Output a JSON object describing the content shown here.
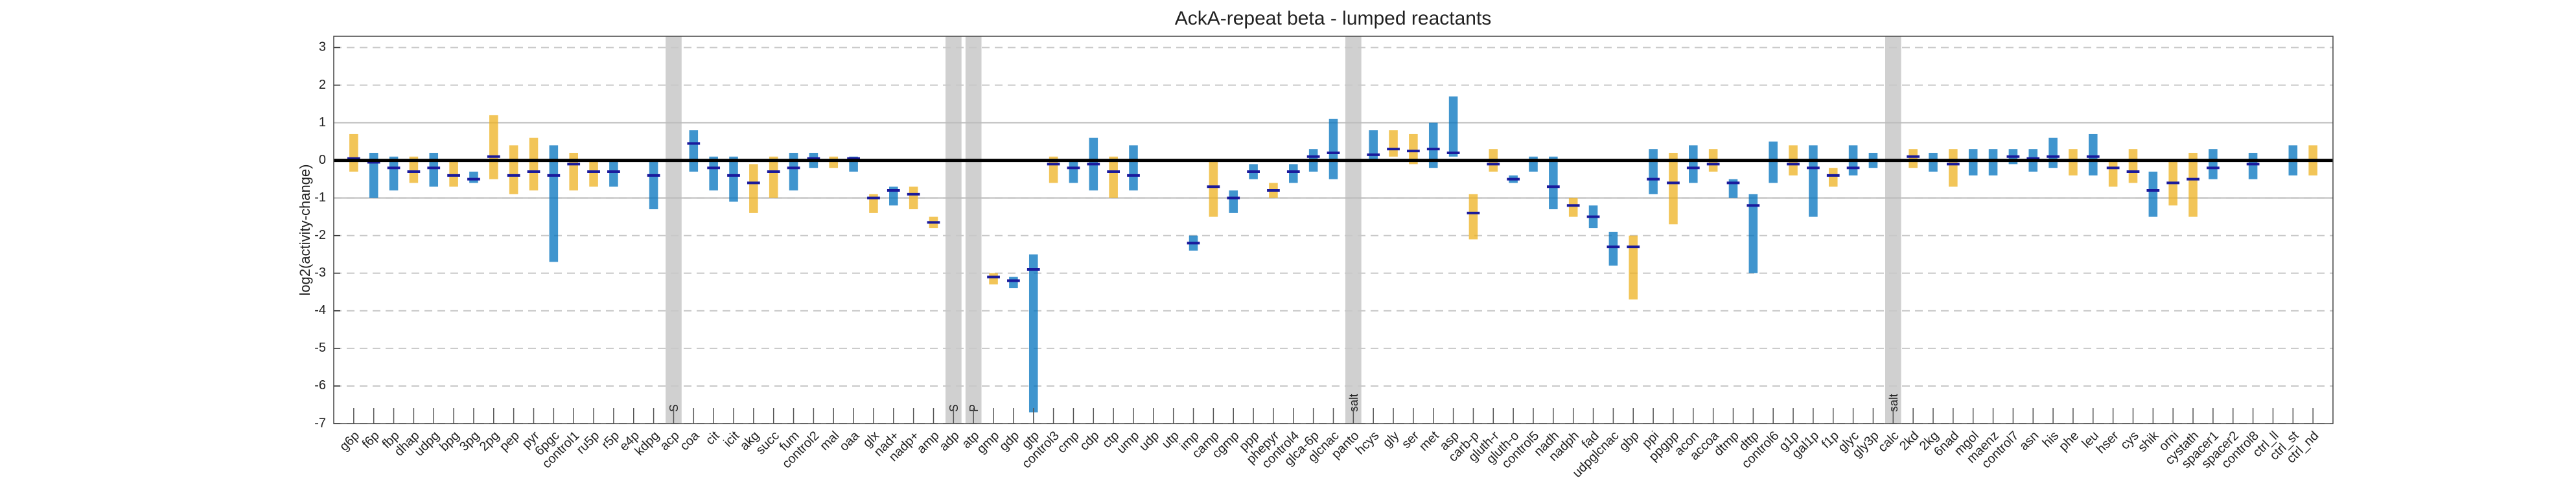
{
  "chart_data": {
    "type": "range-median",
    "title": "AckA-repeat beta - lumped reactants",
    "ylabel": "log2(activity-change)",
    "categories": [
      "g6p",
      "f6p",
      "fbp",
      "dhap",
      "udpg",
      "bpg",
      "3pg",
      "2pg",
      "pep",
      "pyr",
      "6pgc",
      "control1",
      "ru5p",
      "r5p",
      "e4p",
      "kdpg",
      "acp",
      "coa",
      "cit",
      "icit",
      "akg",
      "succ",
      "fum",
      "control2",
      "mal",
      "oaa",
      "glx",
      "nad+",
      "nadp+",
      "amp",
      "adp",
      "atp",
      "gmp",
      "gdp",
      "gtp",
      "control3",
      "cmp",
      "cdp",
      "ctp",
      "ump",
      "udp",
      "utp",
      "imp",
      "camp",
      "cgmp",
      "ppp",
      "phepyr",
      "control4",
      "glca-6p",
      "glcnac",
      "panto",
      "hcys",
      "gly",
      "ser",
      "met",
      "asp",
      "carb-p",
      "gluth-r",
      "gluth-o",
      "control5",
      "nadh",
      "nadph",
      "fad",
      "udpglcnac",
      "gbp",
      "ppi",
      "ppgpp",
      "acon",
      "accoa",
      "dtmp",
      "dttp",
      "control6",
      "g1p",
      "gal1p",
      "f1p",
      "glyc",
      "gly3p",
      "calc",
      "2kd",
      "2kg",
      "6nad",
      "mgol",
      "maenz",
      "control7",
      "asn",
      "his",
      "phe",
      "leu",
      "hser",
      "cys",
      "shik",
      "orni",
      "cystath",
      "spacer1",
      "spacer2",
      "control8",
      "ctrl_ll",
      "ctrl_st",
      "ctrl_nd"
    ],
    "values": [
      0.05,
      -0.05,
      -0.2,
      -0.3,
      -0.2,
      -0.4,
      -0.5,
      0.1,
      -0.4,
      -0.3,
      -0.4,
      -0.1,
      -0.3,
      -0.3,
      null,
      -0.4,
      null,
      0.45,
      -0.2,
      -0.4,
      -0.6,
      -0.3,
      -0.2,
      0.05,
      0,
      0.05,
      -1,
      -0.8,
      -0.9,
      -1.65,
      null,
      null,
      -3.1,
      -3.2,
      -2.9,
      -0.1,
      -0.2,
      -0.1,
      -0.3,
      -0.4,
      null,
      null,
      -2.2,
      -0.7,
      -1,
      -0.3,
      -0.8,
      -0.3,
      0.1,
      0.2,
      null,
      0.15,
      0.3,
      0.25,
      0.3,
      0.2,
      -1.4,
      -0.1,
      -0.5,
      0,
      -0.7,
      -1.2,
      -1.5,
      -2.3,
      -2.3,
      -0.5,
      -0.6,
      -0.2,
      -0.1,
      -0.6,
      -1.2,
      0,
      -0.1,
      -0.2,
      -0.4,
      -0.2,
      0,
      null,
      0.1,
      0,
      -0.1,
      0,
      0,
      0.1,
      0.05,
      0.1,
      0,
      0.1,
      -0.2,
      -0.3,
      -0.8,
      -0.6,
      -0.5,
      -0.2,
      null,
      -0.1,
      null,
      0,
      0
    ],
    "lows": [
      -0.3,
      -1,
      -0.8,
      -0.6,
      -0.7,
      -0.7,
      -0.6,
      -0.5,
      -0.9,
      -0.8,
      -2.7,
      -0.8,
      -0.7,
      -0.7,
      null,
      -1.3,
      null,
      -0.3,
      -0.8,
      -1.1,
      -1.4,
      -1,
      -0.8,
      -0.2,
      -0.2,
      -0.3,
      -1.4,
      -1.2,
      -1.3,
      -1.8,
      null,
      null,
      -3.3,
      -3.4,
      -6.7,
      -0.6,
      -0.6,
      -0.8,
      -1,
      -0.8,
      null,
      null,
      -2.4,
      -1.5,
      -1.4,
      -0.5,
      -1,
      -0.6,
      -0.3,
      -0.5,
      null,
      0,
      0.1,
      -0.1,
      -0.2,
      0.1,
      -2.1,
      -0.3,
      -0.6,
      -0.3,
      -1.3,
      -1.5,
      -1.8,
      -2.8,
      -3.7,
      -0.9,
      -1.7,
      -0.6,
      -0.3,
      -1,
      -3,
      -0.6,
      -0.4,
      -1.5,
      -0.7,
      -0.4,
      -0.2,
      null,
      -0.2,
      -0.3,
      -0.7,
      -0.4,
      -0.4,
      -0.1,
      -0.3,
      -0.2,
      -0.4,
      -0.4,
      -0.7,
      -0.6,
      -1.5,
      -1.2,
      -1.5,
      -0.5,
      null,
      -0.5,
      null,
      -0.4,
      -0.4
    ],
    "highs": [
      0.7,
      0.2,
      0.1,
      0.1,
      0.2,
      0,
      -0.3,
      1.2,
      0.4,
      0.6,
      0.4,
      0.2,
      0,
      0,
      null,
      0,
      null,
      0.8,
      0.1,
      0.1,
      -0.1,
      0.1,
      0.2,
      0.2,
      0.1,
      0.1,
      -0.9,
      -0.7,
      -0.7,
      -1.5,
      null,
      null,
      -3,
      -3.1,
      -2.5,
      0.1,
      0,
      0.6,
      0.1,
      0.4,
      null,
      null,
      -2,
      0,
      -0.8,
      -0.1,
      -0.6,
      -0.1,
      0.3,
      1.1,
      null,
      0.8,
      0.8,
      0.7,
      1,
      1.7,
      -0.9,
      0.3,
      -0.4,
      0.1,
      0.1,
      -1,
      -1.2,
      -1.9,
      -2,
      0.3,
      0.2,
      0.4,
      0.3,
      -0.5,
      -0.9,
      0.5,
      0.4,
      0.4,
      -0.2,
      0.4,
      0.2,
      null,
      0.3,
      0.2,
      0.3,
      0.3,
      0.3,
      0.3,
      0.3,
      0.6,
      0.3,
      0.7,
      0,
      0.3,
      -0.3,
      0,
      0.2,
      0.3,
      null,
      0.2,
      null,
      0.4,
      0.4
    ],
    "colors": [
      "#edb120",
      "#0072bd",
      "#0072bd",
      "#edb120",
      "#0072bd",
      "#edb120",
      "#0072bd",
      "#edb120",
      "#edb120",
      "#edb120",
      "#0072bd",
      "#edb120",
      "#edb120",
      "#0072bd",
      null,
      "#0072bd",
      null,
      "#0072bd",
      "#0072bd",
      "#0072bd",
      "#edb120",
      "#edb120",
      "#0072bd",
      "#0072bd",
      "#edb120",
      "#0072bd",
      "#edb120",
      "#0072bd",
      "#edb120",
      "#edb120",
      null,
      null,
      "#edb120",
      "#0072bd",
      "#0072bd",
      "#edb120",
      "#0072bd",
      "#0072bd",
      "#edb120",
      "#0072bd",
      null,
      null,
      "#0072bd",
      "#edb120",
      "#0072bd",
      "#0072bd",
      "#edb120",
      "#0072bd",
      "#0072bd",
      "#0072bd",
      null,
      "#0072bd",
      "#edb120",
      "#edb120",
      "#0072bd",
      "#0072bd",
      "#edb120",
      "#edb120",
      "#0072bd",
      "#0072bd",
      "#0072bd",
      "#edb120",
      "#0072bd",
      "#0072bd",
      "#edb120",
      "#0072bd",
      "#edb120",
      "#0072bd",
      "#edb120",
      "#0072bd",
      "#0072bd",
      "#0072bd",
      "#edb120",
      "#0072bd",
      "#edb120",
      "#0072bd",
      "#0072bd",
      null,
      "#edb120",
      "#0072bd",
      "#edb120",
      "#0072bd",
      "#0072bd",
      "#0072bd",
      "#0072bd",
      "#0072bd",
      "#edb120",
      "#0072bd",
      "#edb120",
      "#edb120",
      "#0072bd",
      "#edb120",
      "#edb120",
      "#0072bd",
      null,
      "#0072bd",
      null,
      "#0072bd",
      "#edb120"
    ],
    "median_color": "#1a1a9c",
    "shaded": [
      {
        "category": "acp",
        "label": "S"
      },
      {
        "category": "adp",
        "label": "S"
      },
      {
        "category": "atp",
        "label": "P"
      },
      {
        "category": "panto",
        "label": "salt"
      },
      {
        "category": "calc",
        "label": "salt"
      }
    ],
    "shade_color": "#d0d0d0",
    "ylim": [
      -7,
      3.3
    ],
    "yticks": [
      -7,
      -6,
      -5,
      -4,
      -3,
      -2,
      -1,
      0,
      1,
      2,
      3
    ],
    "grid": true,
    "threshold_lines": [
      -1,
      1
    ],
    "zero_line": 0
  }
}
